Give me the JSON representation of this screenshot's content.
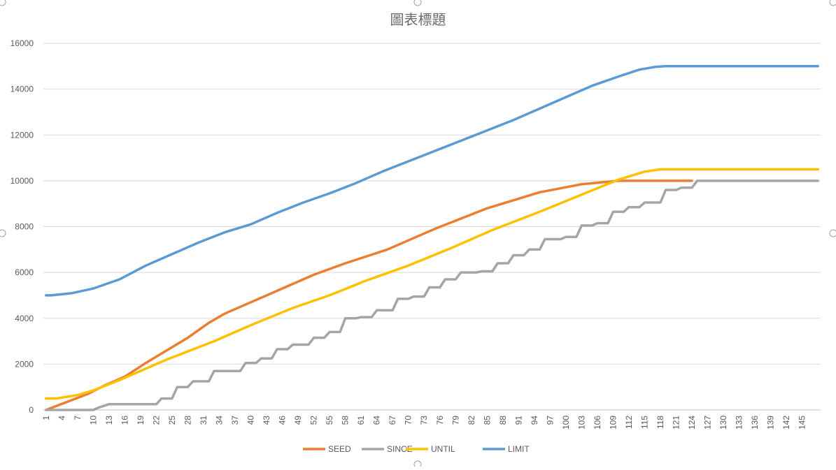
{
  "chart_data": {
    "type": "line",
    "title": "圖表標題",
    "xlabel": "",
    "ylabel": "",
    "x": [
      1,
      148
    ],
    "x_tick_labels": [
      "1",
      "4",
      "7",
      "10",
      "13",
      "16",
      "19",
      "22",
      "25",
      "28",
      "31",
      "34",
      "37",
      "40",
      "43",
      "46",
      "49",
      "52",
      "55",
      "58",
      "61",
      "64",
      "67",
      "70",
      "73",
      "76",
      "79",
      "82",
      "85",
      "88",
      "91",
      "94",
      "97",
      "100",
      "103",
      "106",
      "109",
      "112",
      "115",
      "118",
      "121",
      "124",
      "127",
      "130",
      "133",
      "136",
      "139",
      "142",
      "145"
    ],
    "y_ticks": [
      0,
      2000,
      4000,
      6000,
      8000,
      10000,
      12000,
      14000,
      16000
    ],
    "y_tick_labels": [
      "0",
      "2000",
      "4000",
      "6000",
      "8000",
      "10000",
      "12000",
      "14000",
      "16000"
    ],
    "ylim": [
      0,
      16000
    ],
    "grid": true,
    "legend_position": "bottom",
    "series": [
      {
        "name": "SEED",
        "color": "#ED7D31",
        "points": [
          [
            1,
            0
          ],
          [
            5,
            350
          ],
          [
            9,
            700
          ],
          [
            12,
            1050
          ],
          [
            16,
            1450
          ],
          [
            20,
            2050
          ],
          [
            24,
            2600
          ],
          [
            28,
            3150
          ],
          [
            32,
            3800
          ],
          [
            35,
            4200
          ],
          [
            40,
            4700
          ],
          [
            45,
            5200
          ],
          [
            52,
            5900
          ],
          [
            58,
            6400
          ],
          [
            66,
            7000
          ],
          [
            75,
            7900
          ],
          [
            85,
            8800
          ],
          [
            95,
            9500
          ],
          [
            103,
            9850
          ],
          [
            110,
            10000
          ],
          [
            124,
            10000
          ]
        ]
      },
      {
        "name": "SINCE",
        "color": "#A5A5A5",
        "points": [
          [
            1,
            0
          ],
          [
            10,
            0
          ],
          [
            11,
            100
          ],
          [
            13,
            250
          ],
          [
            22,
            250
          ],
          [
            23,
            500
          ],
          [
            25,
            500
          ],
          [
            26,
            1000
          ],
          [
            28,
            1000
          ],
          [
            29,
            1250
          ],
          [
            32,
            1250
          ],
          [
            33,
            1700
          ],
          [
            38,
            1700
          ],
          [
            39,
            2050
          ],
          [
            41,
            2050
          ],
          [
            42,
            2250
          ],
          [
            44,
            2250
          ],
          [
            45,
            2650
          ],
          [
            47,
            2650
          ],
          [
            48,
            2850
          ],
          [
            51,
            2850
          ],
          [
            52,
            3150
          ],
          [
            54,
            3150
          ],
          [
            55,
            3400
          ],
          [
            57,
            3400
          ],
          [
            58,
            4000
          ],
          [
            60,
            4000
          ],
          [
            61,
            4050
          ],
          [
            63,
            4050
          ],
          [
            64,
            4350
          ],
          [
            67,
            4350
          ],
          [
            68,
            4850
          ],
          [
            70,
            4850
          ],
          [
            71,
            4950
          ],
          [
            73,
            4950
          ],
          [
            74,
            5350
          ],
          [
            76,
            5350
          ],
          [
            77,
            5700
          ],
          [
            79,
            5700
          ],
          [
            80,
            6000
          ],
          [
            83,
            6000
          ],
          [
            84,
            6050
          ],
          [
            86,
            6050
          ],
          [
            87,
            6400
          ],
          [
            89,
            6400
          ],
          [
            90,
            6750
          ],
          [
            92,
            6750
          ],
          [
            93,
            7000
          ],
          [
            95,
            7000
          ],
          [
            96,
            7450
          ],
          [
            99,
            7450
          ],
          [
            100,
            7550
          ],
          [
            102,
            7550
          ],
          [
            103,
            8050
          ],
          [
            105,
            8050
          ],
          [
            106,
            8150
          ],
          [
            108,
            8150
          ],
          [
            109,
            8650
          ],
          [
            111,
            8650
          ],
          [
            112,
            8850
          ],
          [
            114,
            8850
          ],
          [
            115,
            9050
          ],
          [
            118,
            9050
          ],
          [
            119,
            9600
          ],
          [
            121,
            9600
          ],
          [
            122,
            9700
          ],
          [
            124,
            9700
          ],
          [
            125,
            10000
          ],
          [
            148,
            10000
          ]
        ]
      },
      {
        "name": "UNTIL",
        "color": "#FFC000",
        "points": [
          [
            1,
            500
          ],
          [
            3,
            500
          ],
          [
            7,
            650
          ],
          [
            10,
            850
          ],
          [
            15,
            1300
          ],
          [
            20,
            1800
          ],
          [
            24,
            2200
          ],
          [
            28,
            2550
          ],
          [
            33,
            3000
          ],
          [
            40,
            3700
          ],
          [
            48,
            4450
          ],
          [
            55,
            5000
          ],
          [
            62,
            5650
          ],
          [
            70,
            6300
          ],
          [
            78,
            7050
          ],
          [
            86,
            7850
          ],
          [
            95,
            8650
          ],
          [
            102,
            9300
          ],
          [
            110,
            10050
          ],
          [
            115,
            10400
          ],
          [
            118,
            10500
          ],
          [
            148,
            10500
          ]
        ]
      },
      {
        "name": "LIMIT",
        "color": "#5B9BD5",
        "points": [
          [
            1,
            5000
          ],
          [
            2,
            5000
          ],
          [
            6,
            5100
          ],
          [
            10,
            5300
          ],
          [
            15,
            5700
          ],
          [
            20,
            6300
          ],
          [
            25,
            6800
          ],
          [
            30,
            7300
          ],
          [
            35,
            7750
          ],
          [
            40,
            8100
          ],
          [
            45,
            8600
          ],
          [
            50,
            9050
          ],
          [
            55,
            9450
          ],
          [
            60,
            9900
          ],
          [
            65,
            10400
          ],
          [
            70,
            10850
          ],
          [
            75,
            11300
          ],
          [
            80,
            11750
          ],
          [
            85,
            12200
          ],
          [
            90,
            12650
          ],
          [
            95,
            13150
          ],
          [
            100,
            13650
          ],
          [
            105,
            14150
          ],
          [
            110,
            14550
          ],
          [
            114,
            14850
          ],
          [
            117,
            14970
          ],
          [
            119,
            15000
          ],
          [
            148,
            15000
          ]
        ]
      }
    ]
  }
}
